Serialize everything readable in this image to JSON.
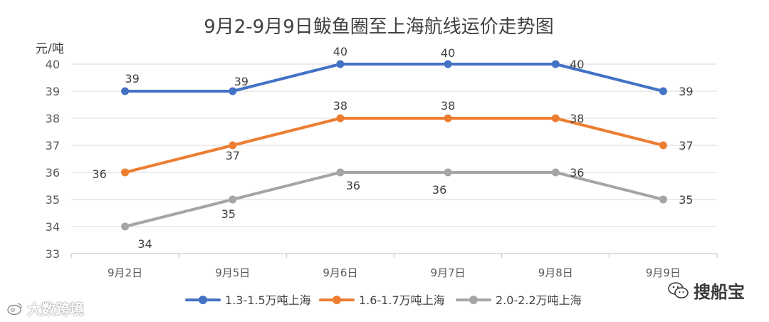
{
  "chart_data": {
    "type": "line",
    "title": "9月2-9月9日鲅鱼圈至上海航线运价走势图",
    "y_unit_label": "元/吨",
    "categories": [
      "9月2日",
      "9月5日",
      "9月6日",
      "9月7日",
      "9月8日",
      "9月9日"
    ],
    "ylim": [
      33,
      40
    ],
    "yticks": [
      33,
      34,
      35,
      36,
      37,
      38,
      39,
      40
    ],
    "grid": true,
    "legend_position": "bottom",
    "series": [
      {
        "name": "1.3-1.5万吨上海",
        "color": "#4472C4",
        "values": [
          39,
          39,
          40,
          40,
          40,
          39
        ]
      },
      {
        "name": "1.6-1.7万吨上海",
        "color": "#ED7D31",
        "values": [
          36,
          37,
          38,
          38,
          38,
          37
        ]
      },
      {
        "name": "2.0-2.2万吨上海",
        "color": "#A5A5A5",
        "values": [
          34,
          35,
          36,
          36,
          36,
          35
        ]
      }
    ]
  },
  "watermarks": {
    "left": "大数跨境",
    "right": "搜船宝"
  }
}
